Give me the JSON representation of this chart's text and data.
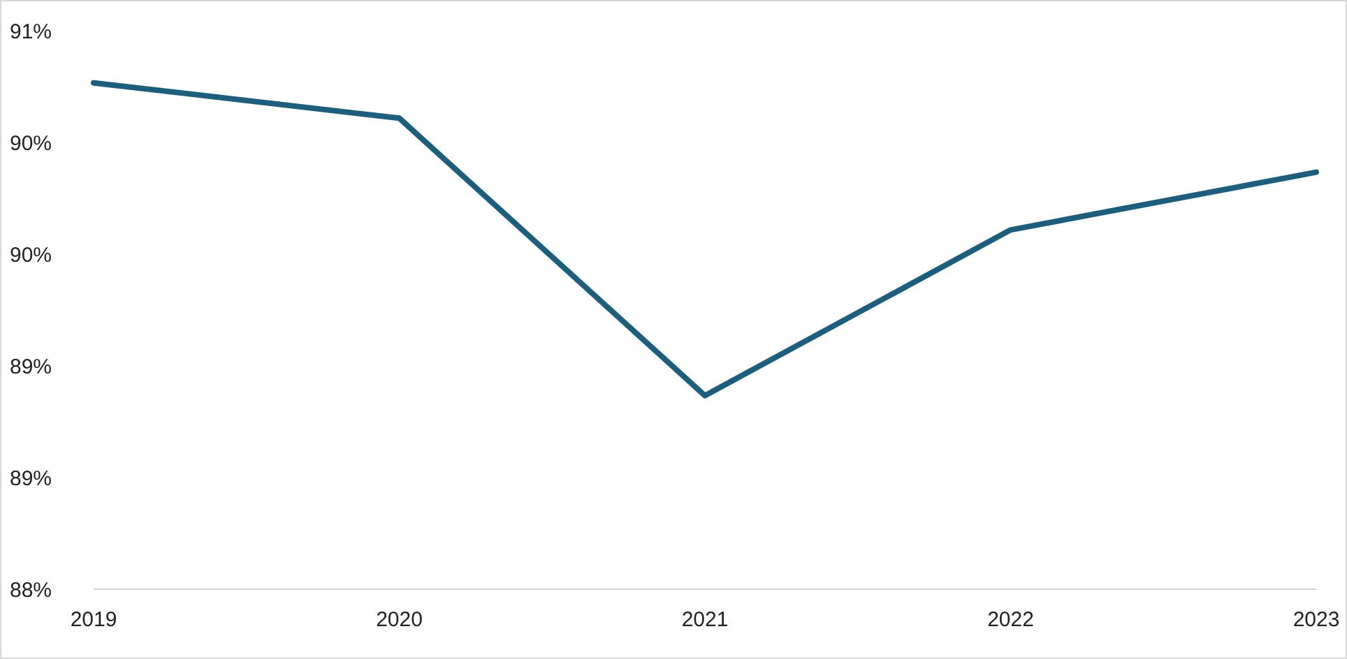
{
  "chart_data": {
    "type": "line",
    "categories": [
      "2019",
      "2020",
      "2021",
      "2022",
      "2023"
    ],
    "series": [
      {
        "color": "#1b5e7e",
        "values": [
          90.72,
          90.53,
          89.04,
          89.93,
          90.24
        ]
      }
    ],
    "ylim": [
      88,
      91
    ],
    "yticks": [
      {
        "value": 88,
        "label": "88%"
      },
      {
        "value": 88.6,
        "label": "89%"
      },
      {
        "value": 89.2,
        "label": "89%"
      },
      {
        "value": 89.8,
        "label": "90%"
      },
      {
        "value": 90.4,
        "label": "90%"
      },
      {
        "value": 91,
        "label": "91%"
      }
    ],
    "grid": false,
    "legend": false,
    "marker": "none",
    "line_style": "solid"
  }
}
